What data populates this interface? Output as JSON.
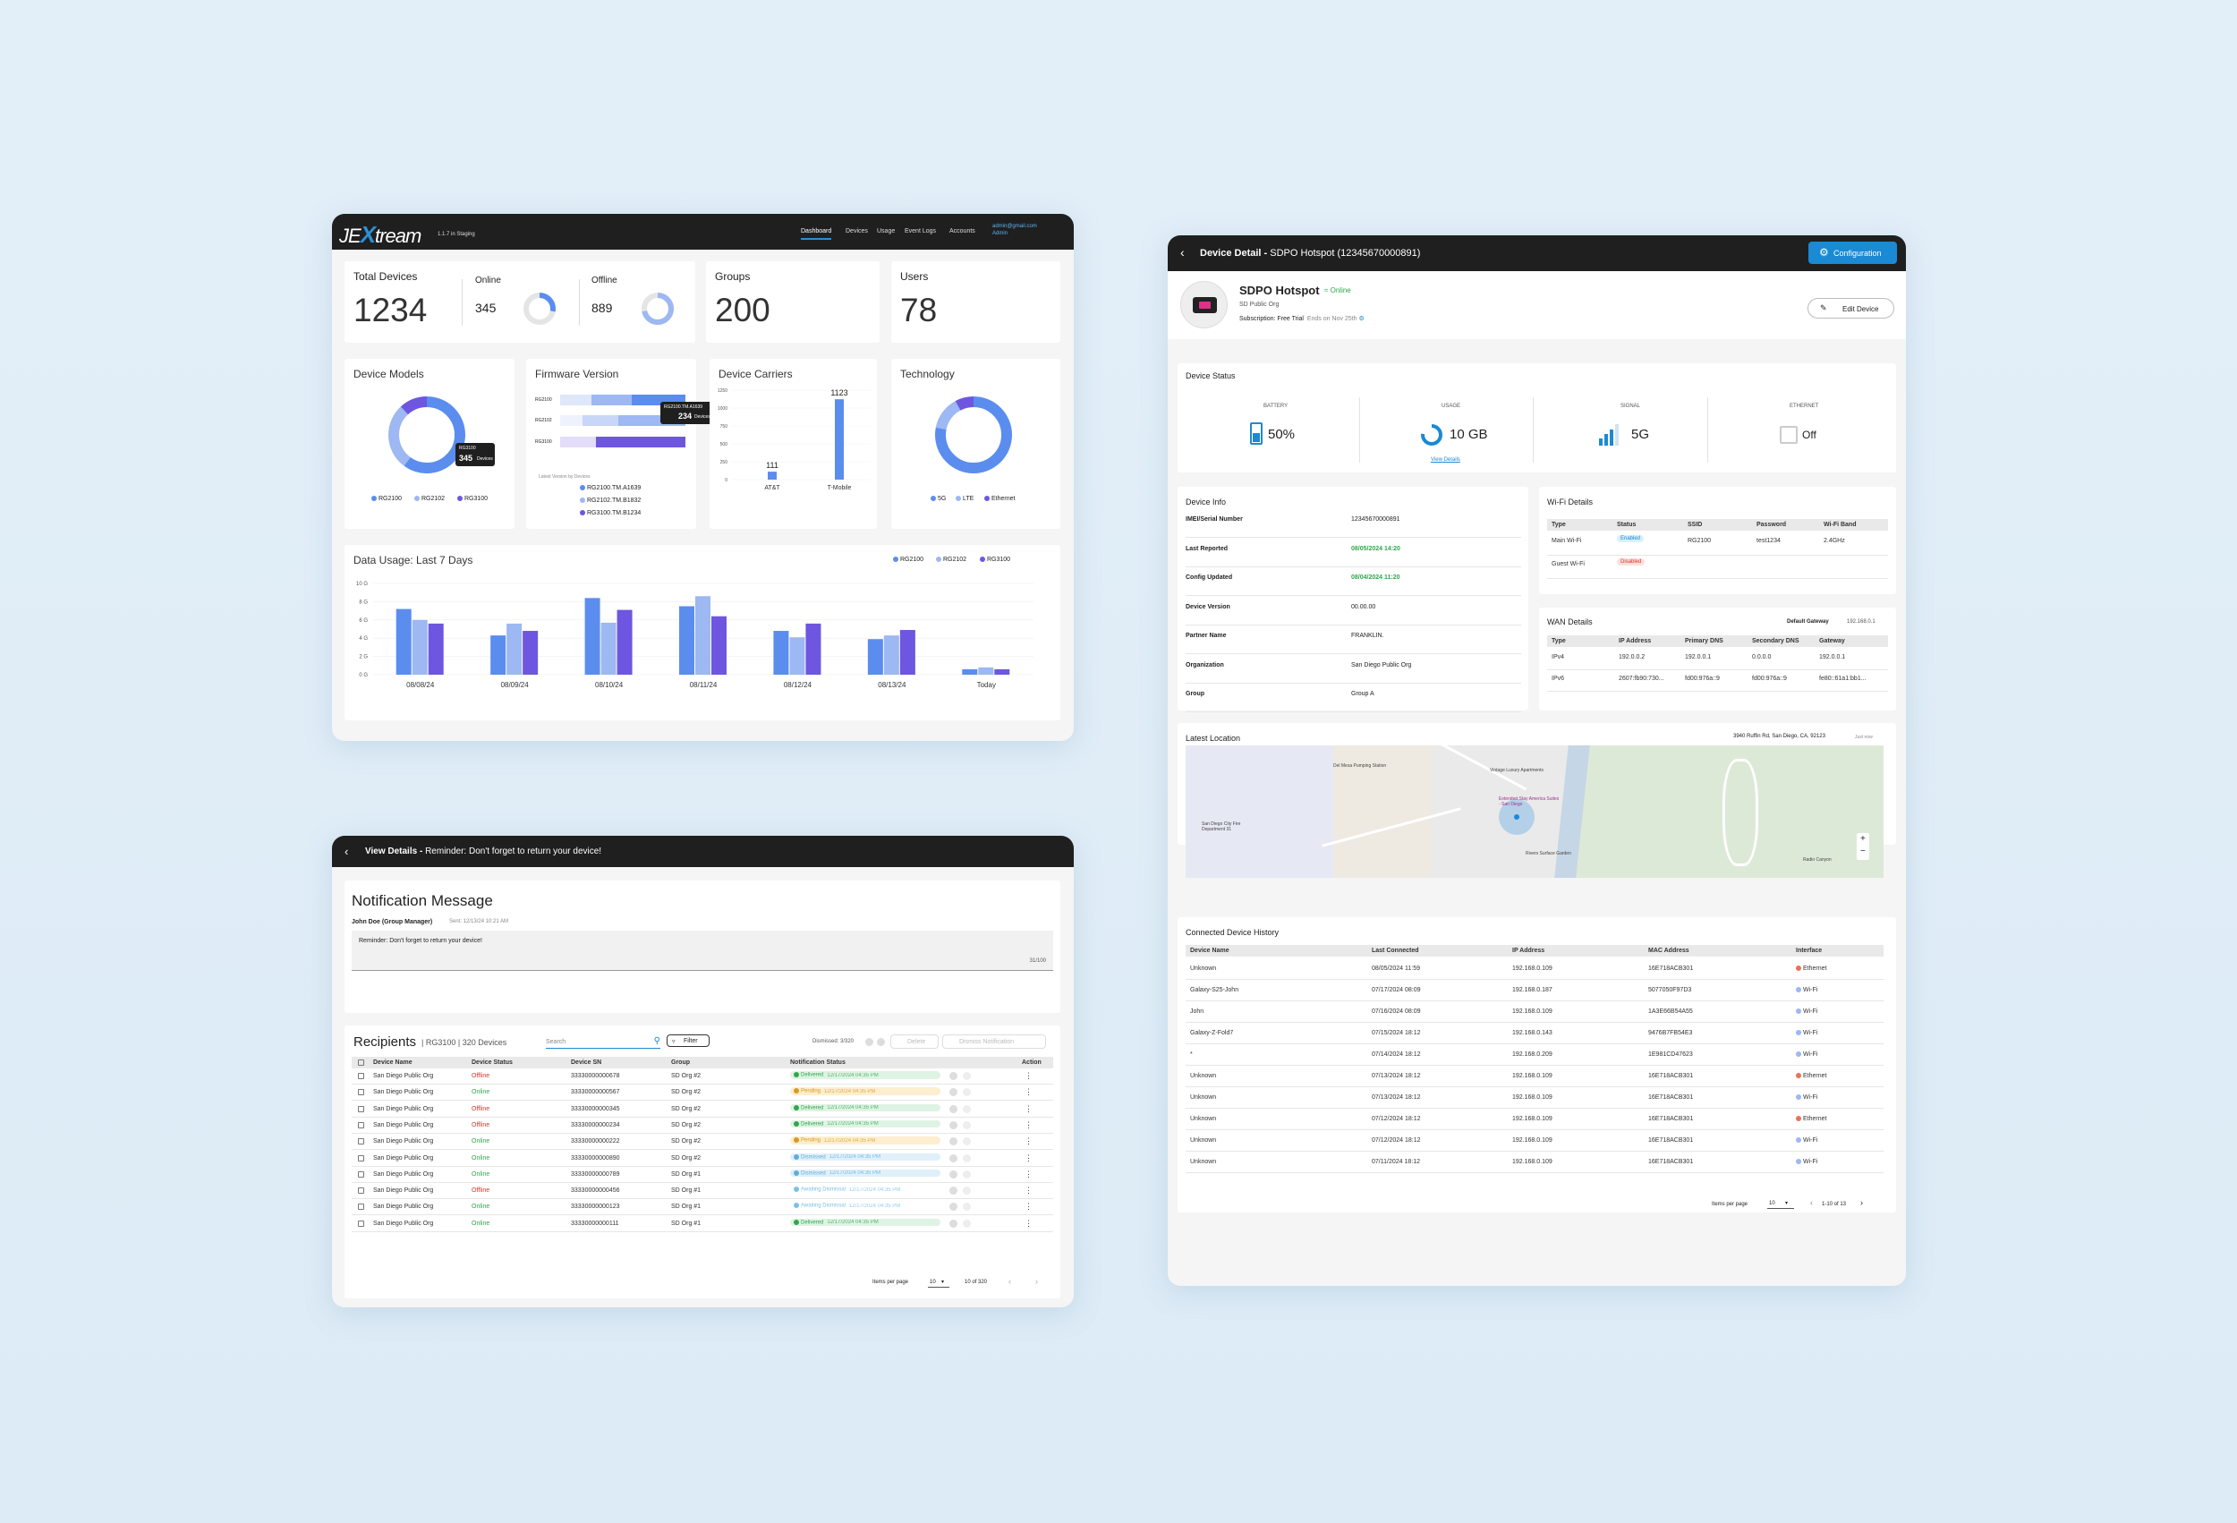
{
  "colors": {
    "blue1": "#5b8def",
    "blue2": "#9db8f2",
    "purple": "#6e56e0",
    "green": "#2ea84a",
    "red": "#d9342b",
    "accent": "#1a8ad4"
  },
  "dashboard": {
    "brand": "JEXtream",
    "brand_x": "X",
    "version": "1.1.7 in Staging",
    "nav": [
      "Dashboard",
      "Devices",
      "Usage",
      "Event Logs",
      "Accounts"
    ],
    "user_email": "admin@gmail.com",
    "user_role": "Admin",
    "total_devices": {
      "label": "Total Devices",
      "value": "1234"
    },
    "online": {
      "label": "Online",
      "value": "345",
      "fraction": 0.28
    },
    "offline": {
      "label": "Offline",
      "value": "889",
      "fraction": 0.72
    },
    "groups": {
      "label": "Groups",
      "value": "200"
    },
    "users": {
      "label": "Users",
      "value": "78"
    },
    "device_models": {
      "title": "Device Models",
      "legend": [
        "RG2100",
        "RG2102",
        "RG3100"
      ],
      "tooltip_model": "RG3100",
      "tooltip_value": "345",
      "tooltip_unit": "Devices"
    },
    "firmware": {
      "title": "Firmware Version",
      "rows": [
        "RG2100",
        "RG2102",
        "RG3100"
      ],
      "tooltip_name": "RG2100.TM.A1639",
      "tooltip_value": "234",
      "tooltip_unit": "Devices",
      "subtitle": "Latest Version by Devices",
      "legend": [
        "RG2100.TM.A1639",
        "RG2102.TM.B1832",
        "RG3100.TM.B1234"
      ]
    },
    "carriers": {
      "title": "Device Carriers",
      "yticks": [
        "1250",
        "1000",
        "750",
        "500",
        "250",
        "0"
      ],
      "bars": [
        {
          "label": "AT&T",
          "value": "111"
        },
        {
          "label": "T-Mobile",
          "value": "1123"
        }
      ]
    },
    "technology": {
      "title": "Technology",
      "legend": [
        "5G",
        "LTE",
        "Ethernet"
      ]
    },
    "usage": {
      "title": "Data Usage: Last 7 Days",
      "legend": [
        "RG2100",
        "RG2102",
        "RG3100"
      ],
      "yticks": [
        "10 G",
        "8 G",
        "6 G",
        "4 G",
        "2 G",
        "0 G"
      ],
      "xlabels": [
        "08/08/24",
        "08/09/24",
        "08/10/24",
        "08/11/24",
        "08/12/24",
        "08/13/24",
        "Today"
      ]
    }
  },
  "chart_data": [
    {
      "type": "bar",
      "title": "Data Usage: Last 7 Days",
      "categories": [
        "08/08/24",
        "08/09/24",
        "08/10/24",
        "08/11/24",
        "08/12/24",
        "08/13/24",
        "Today"
      ],
      "ylim": [
        0,
        10
      ],
      "series": [
        {
          "name": "RG2100",
          "values": [
            7.2,
            4.3,
            8.4,
            7.5,
            4.8,
            3.9,
            0.6
          ]
        },
        {
          "name": "RG2102",
          "values": [
            6.0,
            5.6,
            5.7,
            8.6,
            4.1,
            4.3,
            0.8
          ]
        },
        {
          "name": "RG3100",
          "values": [
            5.6,
            4.8,
            7.1,
            6.4,
            5.6,
            4.9,
            0.6
          ]
        }
      ]
    },
    {
      "type": "bar",
      "title": "Device Carriers",
      "categories": [
        "AT&T",
        "T-Mobile"
      ],
      "values": [
        111,
        1123
      ],
      "ylim": [
        0,
        1250
      ]
    },
    {
      "type": "pie",
      "title": "Device Models",
      "categories": [
        "RG2100",
        "RG2102",
        "RG3100"
      ],
      "values": [
        0.6,
        0.28,
        0.12
      ]
    },
    {
      "type": "pie",
      "title": "Technology",
      "categories": [
        "5G",
        "LTE",
        "Ethernet"
      ],
      "values": [
        0.78,
        0.14,
        0.08
      ]
    }
  ],
  "notification": {
    "header_bold": "View Details - ",
    "header_rest": "Reminder: Don't forget to return your device!",
    "title": "Notification Message",
    "sender": "John Doe (Group Manager)",
    "sent": "Sent: 12/13/24 10:21 AM",
    "message": "Reminder: Don't forget to return your device!",
    "char_count": "31/100",
    "recipients_title": "Recipients",
    "recipients_sub": "| RG3100 | 320 Devices",
    "search_placeholder": "Search",
    "filter": "Filter",
    "dismissed": "Dismissed: 3/320",
    "delete": "Delete",
    "dismiss": "Dismiss Notification",
    "columns": [
      "Device Name",
      "Device Status",
      "Device SN",
      "Group",
      "Notification Status",
      "Action"
    ],
    "rows": [
      {
        "name": "San Diego Public Org",
        "status": "Offline",
        "sn": "33330000000678",
        "group": "SD Org #2",
        "nstatus": "Delivered",
        "ntime": "12/17/2024 04:35 PM"
      },
      {
        "name": "San Diego Public Org",
        "status": "Online",
        "sn": "33330000000567",
        "group": "SD Org #2",
        "nstatus": "Pending",
        "ntime": "12/17/2024 04:35 PM"
      },
      {
        "name": "San Diego Public Org",
        "status": "Offline",
        "sn": "33330000000345",
        "group": "SD Org #2",
        "nstatus": "Delivered",
        "ntime": "12/17/2024 04:35 PM"
      },
      {
        "name": "San Diego Public Org",
        "status": "Offline",
        "sn": "33330000000234",
        "group": "SD Org #2",
        "nstatus": "Delivered",
        "ntime": "12/17/2024 04:35 PM"
      },
      {
        "name": "San Diego Public Org",
        "status": "Online",
        "sn": "33330000000222",
        "group": "SD Org #2",
        "nstatus": "Pending",
        "ntime": "12/17/2024 04:35 PM"
      },
      {
        "name": "San Diego Public Org",
        "status": "Online",
        "sn": "33330000000890",
        "group": "SD Org #2",
        "nstatus": "Dismissed",
        "ntime": "12/17/2024 04:35 PM"
      },
      {
        "name": "San Diego Public Org",
        "status": "Online",
        "sn": "33330000000789",
        "group": "SD Org #1",
        "nstatus": "Dismissed",
        "ntime": "12/17/2024 04:35 PM"
      },
      {
        "name": "San Diego Public Org",
        "status": "Offline",
        "sn": "33330000000456",
        "group": "SD Org #1",
        "nstatus": "Awaiting Dismissal",
        "ntime": "12/17/2024 04:35 PM"
      },
      {
        "name": "San Diego Public Org",
        "status": "Online",
        "sn": "33330000000123",
        "group": "SD Org #1",
        "nstatus": "Awaiting Dismissal",
        "ntime": "12/17/2024 04:35 PM"
      },
      {
        "name": "San Diego Public Org",
        "status": "Online",
        "sn": "33330000000111",
        "group": "SD Org #1",
        "nstatus": "Delivered",
        "ntime": "12/17/2024 04:35 PM"
      }
    ],
    "items_per_page_label": "Items per page",
    "items_per_page": "10",
    "range": "10 of 320"
  },
  "device": {
    "header_bold": "Device Detail - ",
    "header_rest": "SDPO Hotspot (12345670000891)",
    "config_button": "Configuration",
    "name": "SDPO Hotspot",
    "online": "Online",
    "org": "SD Public Org",
    "subscription_label": "Subscription:",
    "subscription": "Free Trial",
    "ends": "Ends on Nov 25th",
    "edit": "Edit Device",
    "status_title": "Device Status",
    "battery_label": "BATTERY",
    "battery": "50%",
    "battery_level": 0.5,
    "usage_label": "USAGE",
    "usage": "10 GB",
    "view_details": "View Details",
    "signal_label": "SIGNAL",
    "signal": "5G",
    "ethernet_label": "ETHERNET",
    "ethernet": "Off",
    "info_title": "Device Info",
    "info": [
      {
        "k": "IMEI/Serial Number",
        "v": "12345670000891",
        "hl": false
      },
      {
        "k": "Last Reported",
        "v": "08/05/2024 14:20",
        "hl": true
      },
      {
        "k": "Config Updated",
        "v": "08/04/2024 11:20",
        "hl": true
      },
      {
        "k": "Device Version",
        "v": "00.00.00",
        "hl": false
      },
      {
        "k": "Partner Name",
        "v": "FRANKLIN.",
        "hl": false
      },
      {
        "k": "Organization",
        "v": "San Diego Public Org",
        "hl": false
      },
      {
        "k": "Group",
        "v": "Group A",
        "hl": false
      }
    ],
    "wifi_title": "Wi-Fi Details",
    "wifi_cols": [
      "Type",
      "Status",
      "SSID",
      "Password",
      "Wi-Fi Band"
    ],
    "wifi_rows": [
      {
        "type": "Main Wi-Fi",
        "status": "Enabled",
        "ssid": "RG2100",
        "password": "test1234",
        "band": "2.4GHz"
      },
      {
        "type": "Guest Wi-Fi",
        "status": "Disabled",
        "ssid": "",
        "password": "",
        "band": ""
      }
    ],
    "wan_title": "WAN Details",
    "default_gateway_label": "Default Gateway",
    "default_gateway": "192.168.0.1",
    "wan_cols": [
      "Type",
      "IP Address",
      "Primary DNS",
      "Secondary DNS",
      "Gateway"
    ],
    "wan_rows": [
      {
        "type": "IPv4",
        "ip": "192.0.0.2",
        "pdns": "192.0.0.1",
        "sdns": "0.0.0.0",
        "gw": "192.0.0.1"
      },
      {
        "type": "IPv6",
        "ip": "2607:fb90:730...",
        "pdns": "fd00:976a::9",
        "sdns": "fd00:976a::9",
        "gw": "fe80::61a1:bb1..."
      }
    ],
    "location_title": "Latest Location",
    "address": "3940 Ruffin Rd, San Diego, CA, 92123",
    "address_time": "Just now",
    "map_labels": [
      "San Diego City Fire Department 31",
      "Del Mesa Pumping Station",
      "Vintage Luxury Apartments",
      "Extended Stay America Suites - San Diego",
      "Rivers Surface Garden",
      "Radio Canyon"
    ],
    "history_title": "Connected Device History",
    "history_cols": [
      "Device Name",
      "Last Connected",
      "IP Address",
      "MAC Address",
      "Interface"
    ],
    "history": [
      {
        "name": "Unknown",
        "last": "08/05/2024 11:59",
        "ip": "192.168.0.109",
        "mac": "16E718ACB301",
        "iface": "Ethernet"
      },
      {
        "name": "Galaxy-S25-John",
        "last": "07/17/2024 08:09",
        "ip": "192.168.0.187",
        "mac": "5077050F97D3",
        "iface": "Wi-Fi"
      },
      {
        "name": "John",
        "last": "07/16/2024 08:09",
        "ip": "192.168.0.109",
        "mac": "1A3E66B54A55",
        "iface": "Wi-Fi"
      },
      {
        "name": "Galaxy-Z-Fold7",
        "last": "07/15/2024 18:12",
        "ip": "192.168.0.143",
        "mac": "9476B7FB54E3",
        "iface": "Wi-Fi"
      },
      {
        "name": "*",
        "last": "07/14/2024 18:12",
        "ip": "192.168.0.209",
        "mac": "1E981CD47623",
        "iface": "Wi-Fi"
      },
      {
        "name": "Unknown",
        "last": "07/13/2024 18:12",
        "ip": "192.168.0.109",
        "mac": "16E718ACB301",
        "iface": "Ethernet"
      },
      {
        "name": "Unknown",
        "last": "07/13/2024 18:12",
        "ip": "192.168.0.109",
        "mac": "16E718ACB301",
        "iface": "Wi-Fi"
      },
      {
        "name": "Unknown",
        "last": "07/12/2024 18:12",
        "ip": "192.168.0.109",
        "mac": "16E718ACB301",
        "iface": "Ethernet"
      },
      {
        "name": "Unknown",
        "last": "07/12/2024 18:12",
        "ip": "192.168.0.109",
        "mac": "16E718ACB301",
        "iface": "Wi-Fi"
      },
      {
        "name": "Unknown",
        "last": "07/11/2024 18:12",
        "ip": "192.168.0.109",
        "mac": "16E718ACB301",
        "iface": "Wi-Fi"
      }
    ],
    "items_per_page_label": "Items per page",
    "items_per_page": "10",
    "range": "1-10 of 13"
  }
}
